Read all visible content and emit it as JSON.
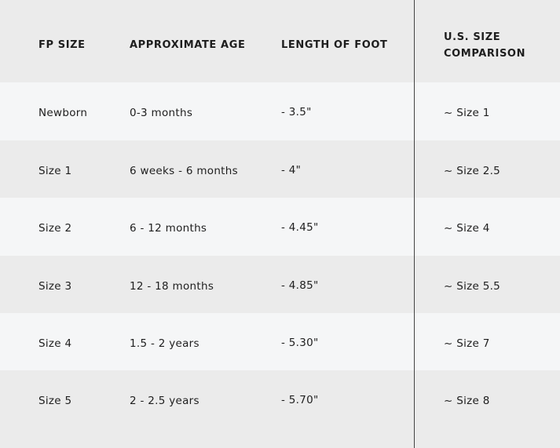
{
  "headers": [
    "FP SIZE",
    "APPROXIMATE AGE",
    "LENGTH OF FOOT",
    "U.S. SIZE",
    "COMPARISON"
  ],
  "rows": [
    [
      "Newborn",
      "0-3 months",
      "- 3.5\"",
      "~ Size 1"
    ],
    [
      "Size 1",
      "6 weeks - 6 months",
      "- 4\"",
      "~ Size 2.5"
    ],
    [
      "Size 2",
      "6 - 12 months",
      "- 4.45\"",
      "~ Size 4"
    ],
    [
      "Size 3",
      "12 - 18 months",
      "- 4.85\"",
      "~ Size 5.5"
    ],
    [
      "Size 4",
      "1.5 - 2 years",
      "- 5.30\"",
      "~ Size 7"
    ],
    [
      "Size 5",
      "2 - 2.5 years",
      "- 5.70\"",
      "~ Size 8"
    ]
  ]
}
